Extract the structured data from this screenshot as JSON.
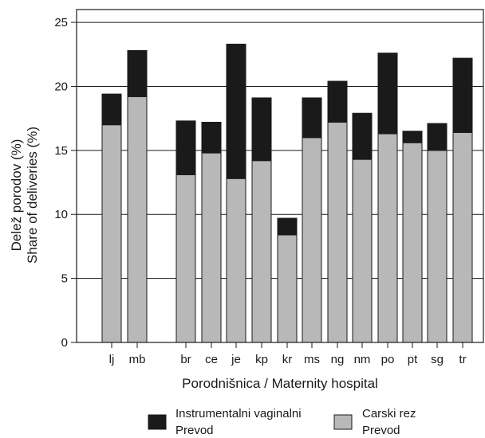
{
  "chart_data": {
    "type": "bar",
    "stacked": true,
    "categories": [
      "lj",
      "mb",
      "br",
      "ce",
      "je",
      "kp",
      "kr",
      "ms",
      "ng",
      "nm",
      "po",
      "pt",
      "sg",
      "tr"
    ],
    "series": [
      {
        "name": "Carski rez",
        "name_translation": "Prevod",
        "color": "#b8b8b8",
        "values": [
          17.0,
          19.2,
          13.1,
          14.8,
          12.8,
          14.2,
          8.4,
          16.0,
          17.2,
          14.3,
          16.3,
          15.6,
          15.0,
          16.4
        ]
      },
      {
        "name": "Instrumentalni vaginalni",
        "name_translation": "Prevod",
        "color": "#1a1a1a",
        "values": [
          2.4,
          3.6,
          4.2,
          2.4,
          10.5,
          4.9,
          1.3,
          3.1,
          3.2,
          3.6,
          6.3,
          0.9,
          2.1,
          5.8
        ]
      }
    ],
    "ylim": [
      0,
      26
    ],
    "yticks": [
      "0",
      "5",
      "10",
      "15",
      "20",
      "25"
    ],
    "ytick_values": [
      0,
      5,
      10,
      15,
      20,
      25
    ],
    "ylabel": "Delež porodov (%)",
    "ylabel_translation": "Share of deliveries (%)",
    "xlabel": "Porodnišnica / Maternity hospital",
    "grid": "horizontal",
    "legend_position": "bottom"
  }
}
